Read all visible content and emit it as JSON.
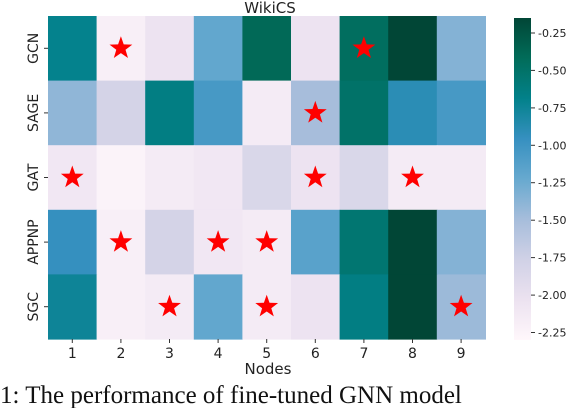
{
  "chart_data": {
    "type": "heatmap",
    "title": "WikiCS",
    "xlabel": "Nodes",
    "ylabel": "",
    "x_categories": [
      "1",
      "2",
      "3",
      "4",
      "5",
      "6",
      "7",
      "8",
      "9"
    ],
    "y_categories": [
      "GCN",
      "SAGE",
      "GAT",
      "APPNP",
      "SGC"
    ],
    "values": [
      [
        -0.7,
        -2.2,
        -2.05,
        -1.2,
        -0.4,
        -2.05,
        -0.45,
        -0.05,
        -1.35
      ],
      [
        -1.4,
        -1.8,
        -0.65,
        -1.05,
        -2.15,
        -1.5,
        -0.5,
        -0.9,
        -1.05
      ],
      [
        -2.1,
        -2.25,
        -2.15,
        -2.1,
        -1.85,
        -2.05,
        -1.85,
        -2.15,
        -2.15
      ],
      [
        -0.95,
        -2.2,
        -1.8,
        -2.1,
        -2.15,
        -1.15,
        -0.55,
        -0.15,
        -1.35
      ],
      [
        -0.75,
        -2.2,
        -2.15,
        -1.2,
        -2.15,
        -2.05,
        -0.65,
        0.0,
        -1.45
      ]
    ],
    "stars": [
      [
        false,
        true,
        false,
        false,
        false,
        false,
        true,
        false,
        false
      ],
      [
        false,
        false,
        false,
        false,
        false,
        true,
        false,
        false,
        false
      ],
      [
        true,
        false,
        false,
        false,
        false,
        true,
        false,
        true,
        false
      ],
      [
        false,
        true,
        false,
        true,
        true,
        false,
        false,
        false,
        false
      ],
      [
        false,
        false,
        true,
        false,
        true,
        false,
        false,
        false,
        true
      ]
    ],
    "colorbar": {
      "ticks": [
        "-0.25",
        "-0.50",
        "-0.75",
        "-1.00",
        "-1.25",
        "-1.50",
        "-1.75",
        "-2.00",
        "-2.25"
      ],
      "tick_values": [
        -0.25,
        -0.5,
        -0.75,
        -1.0,
        -1.25,
        -1.5,
        -1.75,
        -2.0,
        -2.25
      ],
      "vmin": -2.3,
      "vmax": -0.15,
      "colormap": "PuBuGn"
    },
    "grid": false,
    "legend": "colorbar-right",
    "marker_color": "#ff0000"
  },
  "caption": "1: The performance of fine-tuned GNN model"
}
